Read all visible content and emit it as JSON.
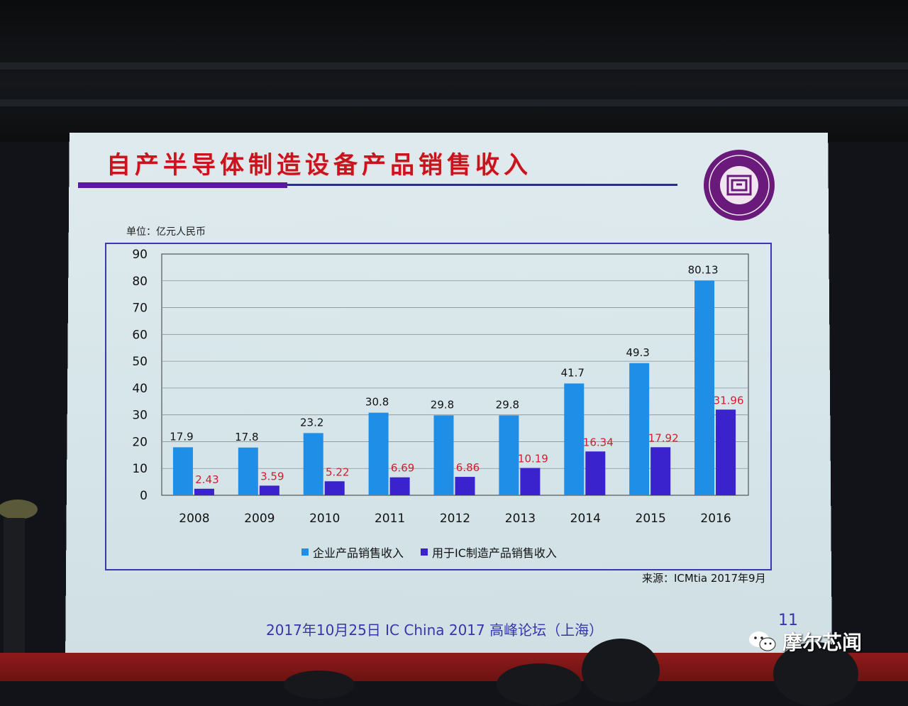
{
  "slide": {
    "title": "自产半导体制造设备产品销售收入",
    "unit_label": "单位：亿元人民币",
    "source": "来源：ICMtia 2017年9月",
    "footer": "2017年10月25日 IC China 2017 高峰论坛（上海）",
    "page_number": "11"
  },
  "watermark": {
    "text": "摩尔芯闻",
    "icon": "wechat-icon"
  },
  "colors": {
    "title": "#c8141e",
    "series1": "#1e8ee6",
    "series2": "#3a22cc",
    "series2_label": "#d01e2e",
    "frame": "#3a3aa8"
  },
  "chart_data": {
    "type": "bar",
    "categories": [
      "2008",
      "2009",
      "2010",
      "2011",
      "2012",
      "2013",
      "2014",
      "2015",
      "2016"
    ],
    "series": [
      {
        "name": "企业产品销售收入",
        "values": [
          17.9,
          17.8,
          23.2,
          30.8,
          29.8,
          29.8,
          41.7,
          49.3,
          80.13
        ],
        "labels": [
          "17.9",
          "17.8",
          "23.2",
          "30.8",
          "29.8",
          "29.8",
          "41.7",
          "49.3",
          "80.13"
        ]
      },
      {
        "name": "用于IC制造产品销售收入",
        "values": [
          2.43,
          3.59,
          5.22,
          6.69,
          6.86,
          10.19,
          16.34,
          17.92,
          31.96
        ],
        "labels": [
          "2.43",
          "3.59",
          "5.22",
          "6.69",
          "6.86",
          "10.19",
          "16.34",
          "17.92",
          "31.96"
        ]
      }
    ],
    "y_ticks": [
      "0",
      "10",
      "20",
      "30",
      "40",
      "50",
      "60",
      "70",
      "80",
      "90"
    ],
    "ylim": [
      0,
      90
    ],
    "grid": true,
    "legend_position": "bottom"
  }
}
